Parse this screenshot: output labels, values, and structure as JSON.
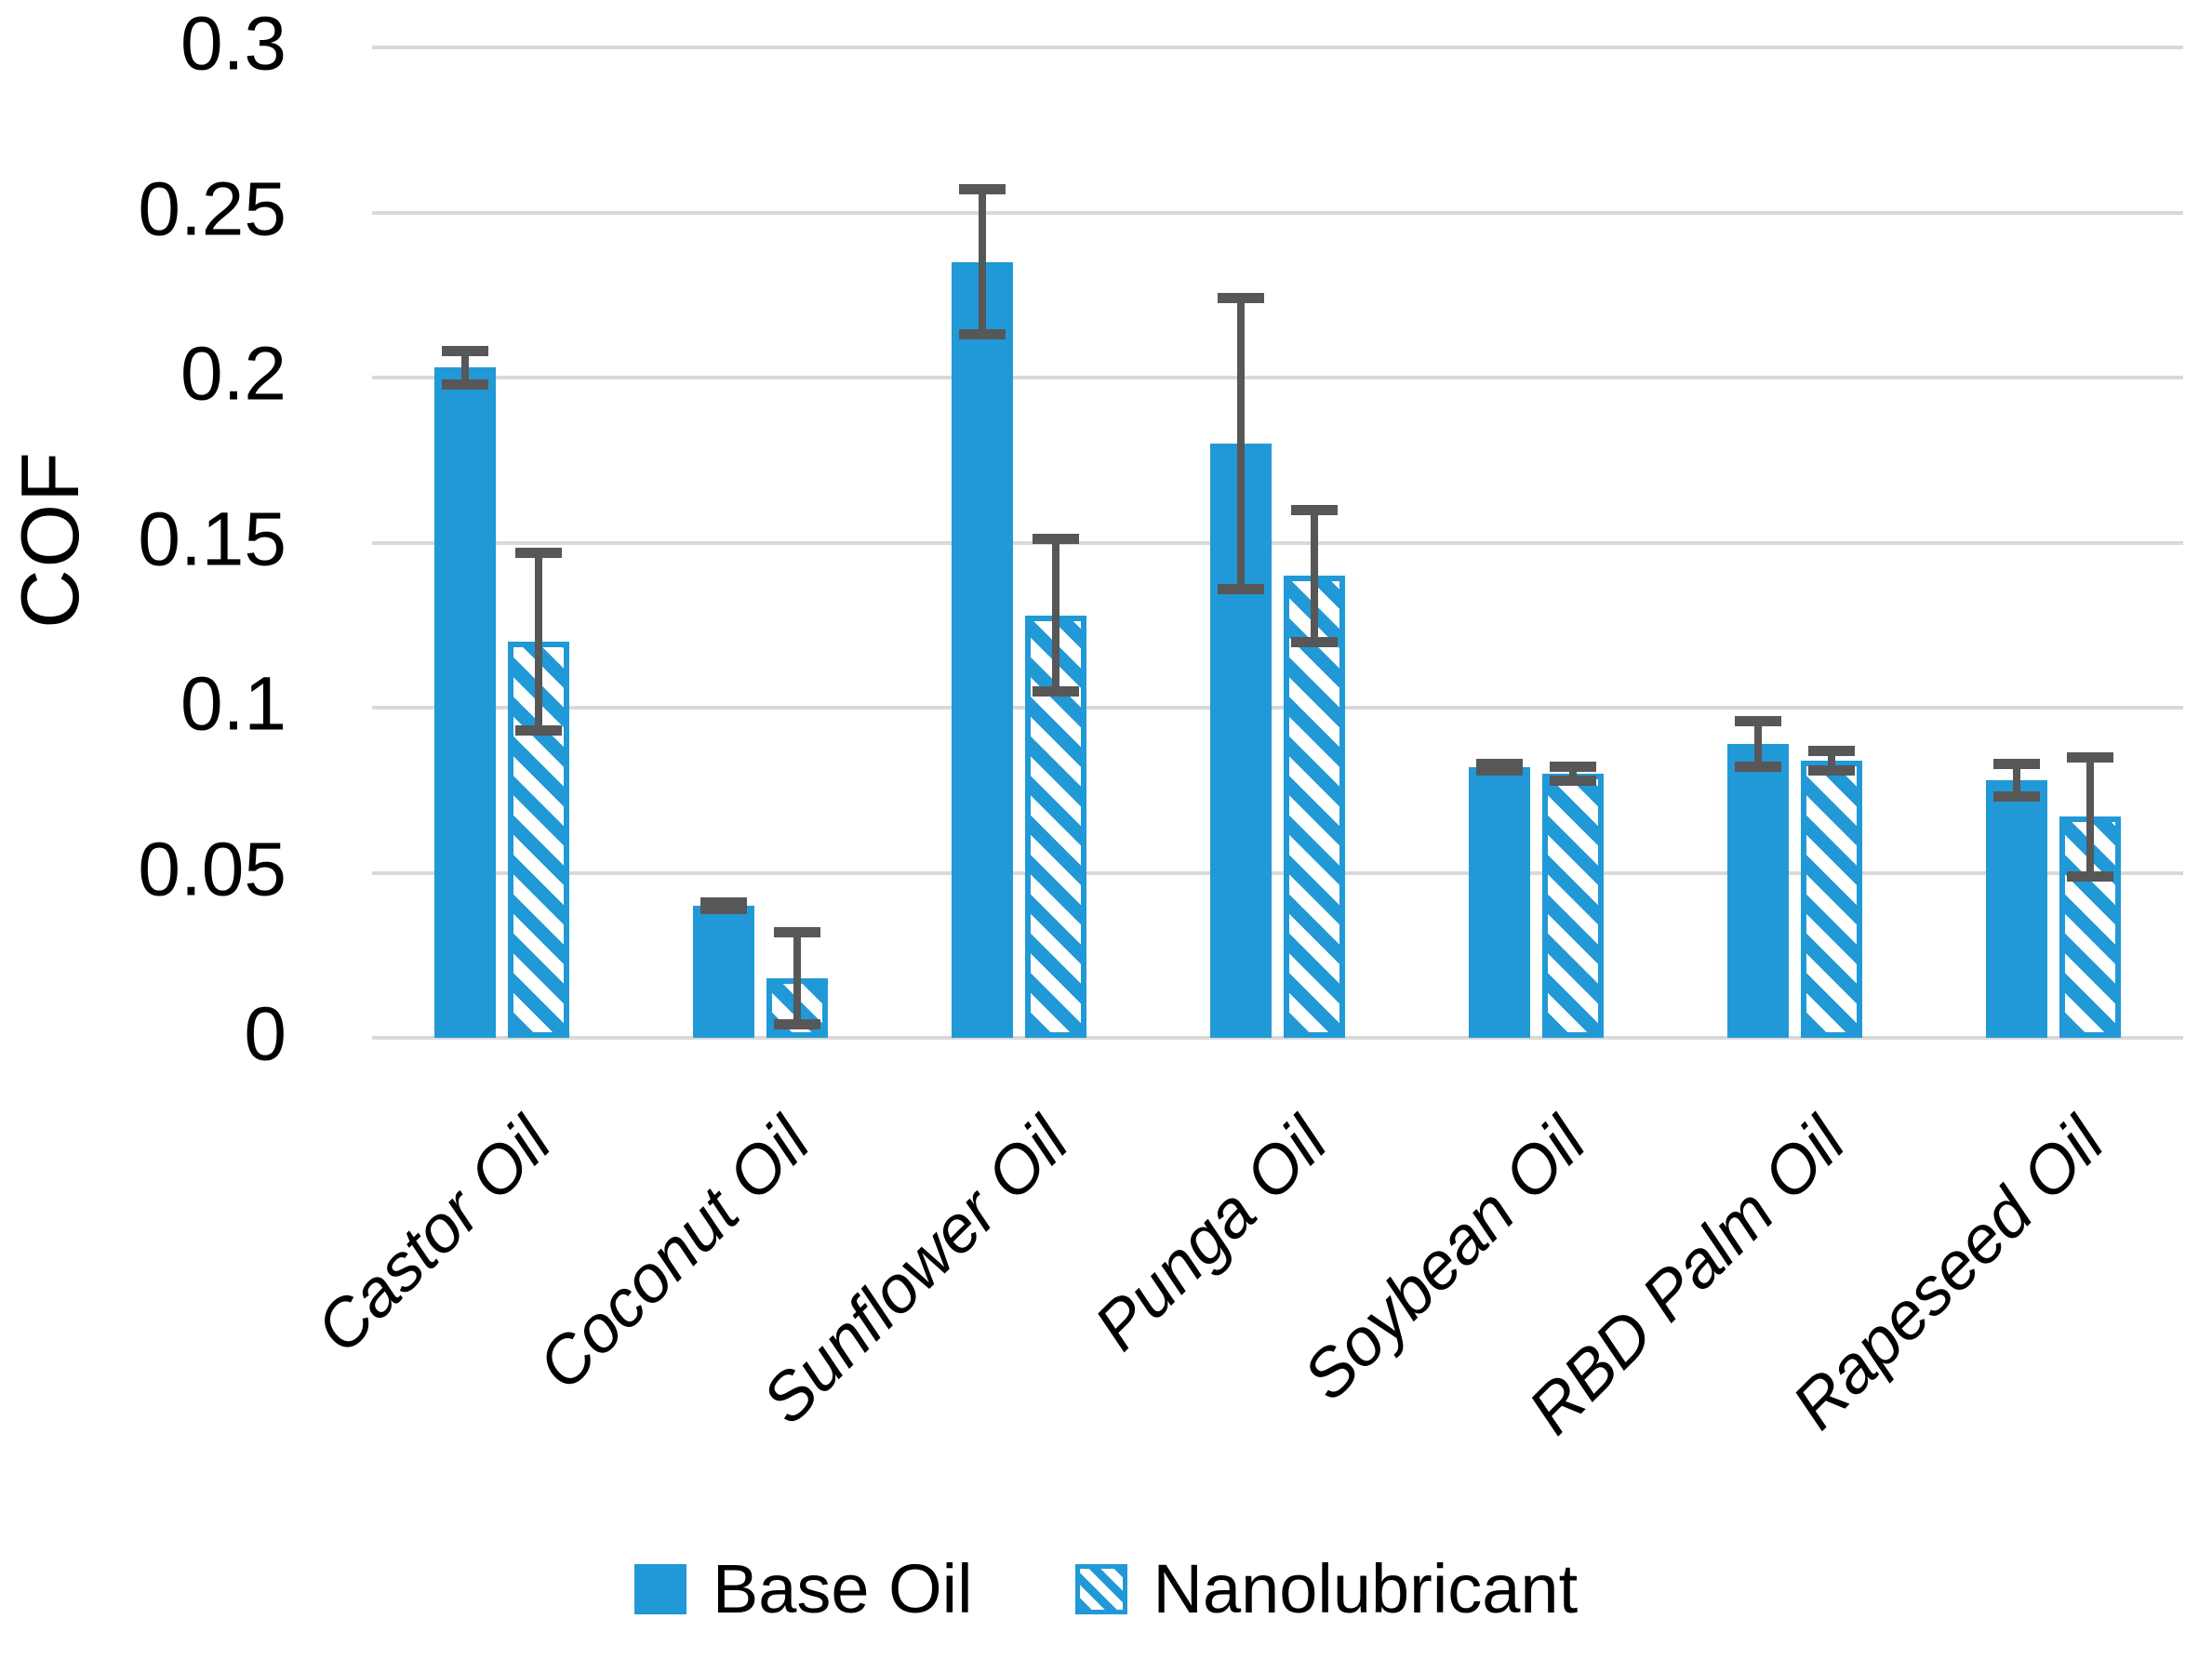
{
  "chart_data": {
    "type": "bar",
    "title": "",
    "ylabel": "COF",
    "xlabel": "",
    "ylim": [
      0,
      0.3
    ],
    "grid": true,
    "legend_position": "bottom",
    "yticks": [
      {
        "label": "0",
        "value": 0
      },
      {
        "label": "0.05",
        "value": 0.05
      },
      {
        "label": "0.1",
        "value": 0.1
      },
      {
        "label": "0.15",
        "value": 0.15
      },
      {
        "label": "0.2",
        "value": 0.2
      },
      {
        "label": "0.25",
        "value": 0.25
      },
      {
        "label": "0.3",
        "value": 0.3
      }
    ],
    "categories": [
      "Castor Oil",
      "Coconut Oil",
      "Sunflower Oil",
      "Punga Oil",
      "Soybean Oil",
      "RBD Palm Oil",
      "Rapeseed Oil"
    ],
    "series": [
      {
        "name": "Base Oil",
        "pattern": "solid",
        "values": [
          0.203,
          0.04,
          0.235,
          0.18,
          0.082,
          0.089,
          0.078
        ],
        "errors": [
          0.005,
          0.001,
          0.022,
          0.044,
          0.001,
          0.007,
          0.005
        ]
      },
      {
        "name": "Nanolubricant",
        "pattern": "hatched",
        "values": [
          0.12,
          0.018,
          0.128,
          0.14,
          0.08,
          0.084,
          0.067
        ],
        "errors": [
          0.027,
          0.014,
          0.023,
          0.02,
          0.002,
          0.003,
          0.018
        ]
      }
    ],
    "colors": {
      "bar_blue": "#2199d6",
      "error_bar": "#575757",
      "gridline": "#d9d9d9",
      "text": "#000000"
    }
  }
}
